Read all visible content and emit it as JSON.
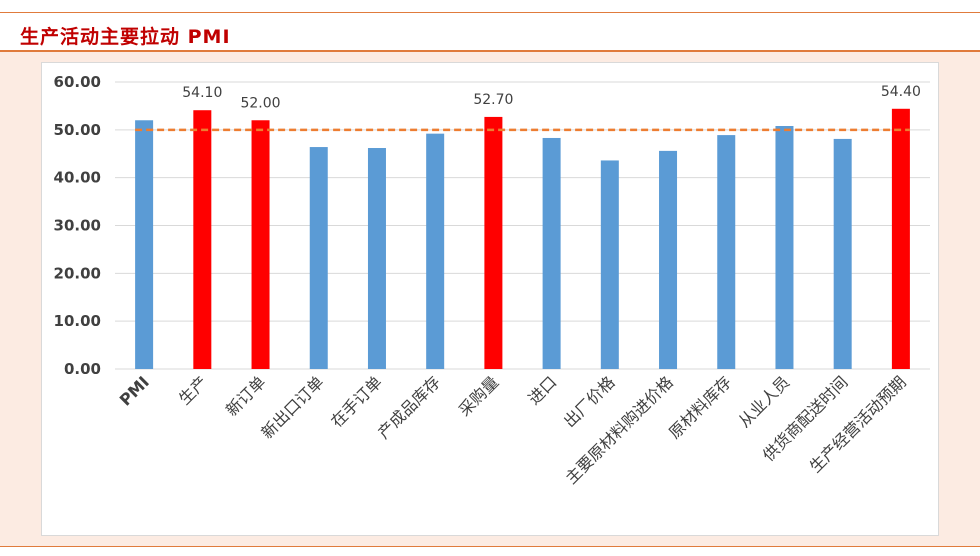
{
  "header": {
    "title": "生产活动主要拉动 PMI"
  },
  "colors": {
    "accent": "#c00000",
    "rule": "#e07b3c",
    "background": "#fcebe2",
    "bar_blue": "#5b9bd5",
    "bar_red": "#ff0000",
    "reference_line": "#ed7d31"
  },
  "chart_data": {
    "type": "bar",
    "categories": [
      "PMI",
      "生产",
      "新订单",
      "新出口订单",
      "在手订单",
      "产成品库存",
      "采购量",
      "进口",
      "出厂价格",
      "主要原材料购进价格",
      "原材料库存",
      "从业人员",
      "供货商配送时间",
      "生产经营活动预期"
    ],
    "values": [
      52.0,
      54.1,
      52.0,
      46.4,
      46.2,
      49.2,
      52.7,
      48.3,
      43.6,
      45.6,
      48.9,
      50.8,
      48.1,
      54.4
    ],
    "highlighted": [
      false,
      true,
      true,
      false,
      false,
      false,
      true,
      false,
      false,
      false,
      false,
      false,
      false,
      true
    ],
    "data_labels": [
      "",
      "54.10",
      "52.00",
      "",
      "",
      "",
      "52.70",
      "",
      "",
      "",
      "",
      "",
      "",
      "54.40"
    ],
    "yticks": [
      "0.00",
      "10.00",
      "20.00",
      "30.00",
      "40.00",
      "50.00",
      "60.00"
    ],
    "ylim": [
      0,
      60
    ],
    "reference_line": 50,
    "grid": true,
    "legend": "none"
  }
}
